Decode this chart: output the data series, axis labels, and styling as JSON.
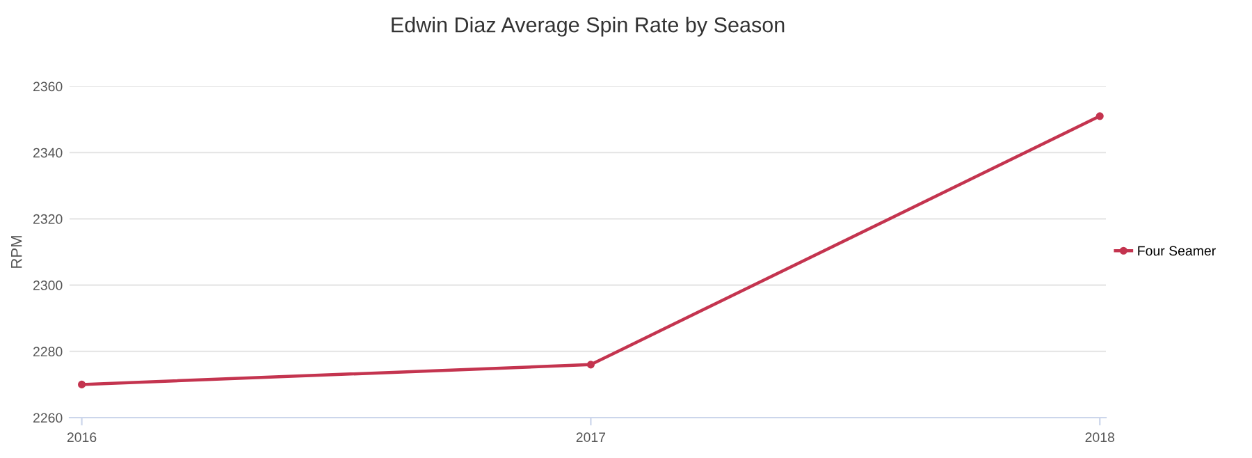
{
  "chart_data": {
    "type": "line",
    "title": "Edwin Diaz Average Spin Rate by Season",
    "ylabel": "RPM",
    "categories": [
      "2016",
      "2017",
      "2018"
    ],
    "series": [
      {
        "name": "Four Seamer",
        "color": "#c4344f",
        "values": [
          2270,
          2276,
          2351
        ]
      }
    ],
    "ylim": [
      2260,
      2360
    ],
    "yticks": [
      2260,
      2280,
      2300,
      2320,
      2340,
      2360
    ],
    "grid": "y",
    "legend": "right",
    "marker": "circle",
    "line_style": "solid"
  }
}
